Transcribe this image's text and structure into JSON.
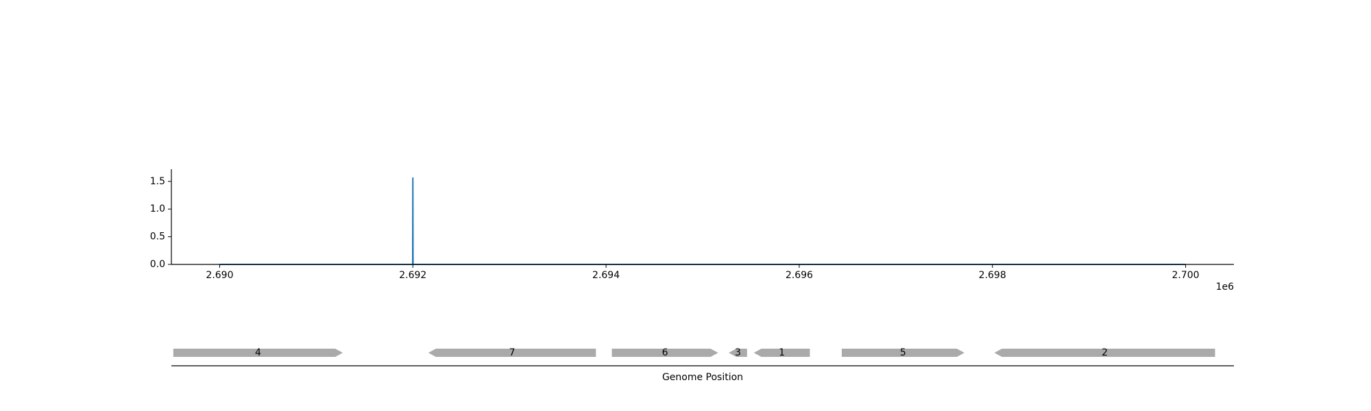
{
  "chart_data": [
    {
      "type": "line",
      "title": "",
      "xlabel": "",
      "ylabel": "",
      "x_offset_label": "1e6",
      "xlim": [
        2.6895,
        2.7005
      ],
      "ylim": [
        0.0,
        1.72
      ],
      "x_ticks": [
        2.69,
        2.692,
        2.694,
        2.696,
        2.698,
        2.7
      ],
      "x_tick_labels": [
        "2.690",
        "2.692",
        "2.694",
        "2.696",
        "2.698",
        "2.700"
      ],
      "y_ticks": [
        0.0,
        0.5,
        1.0,
        1.5
      ],
      "y_tick_labels": [
        "0.0",
        "0.5",
        "1.0",
        "1.5"
      ],
      "grid": false,
      "series": [
        {
          "color": "#1f77b4",
          "x": [
            2.69,
            2.691998,
            2.692,
            2.692002,
            2.7
          ],
          "y": [
            0.0,
            0.0,
            1.57,
            0.0,
            0.0
          ]
        }
      ]
    },
    {
      "type": "gene-map",
      "xlabel": "Genome Position",
      "feature_color": "#aaaaaa",
      "features": [
        {
          "label": "4",
          "start": 2.68952,
          "end": 2.691275,
          "strand": "+"
        },
        {
          "label": "7",
          "start": 2.69216,
          "end": 2.693895,
          "strand": "-"
        },
        {
          "label": "6",
          "start": 2.69406,
          "end": 2.69516,
          "strand": "+"
        },
        {
          "label": "3",
          "start": 2.69527,
          "end": 2.69546,
          "strand": "-"
        },
        {
          "label": "1",
          "start": 2.69553,
          "end": 2.69611,
          "strand": "-"
        },
        {
          "label": "5",
          "start": 2.69644,
          "end": 2.69771,
          "strand": "+"
        },
        {
          "label": "2",
          "start": 2.69802,
          "end": 2.700305,
          "strand": "-"
        }
      ]
    }
  ]
}
